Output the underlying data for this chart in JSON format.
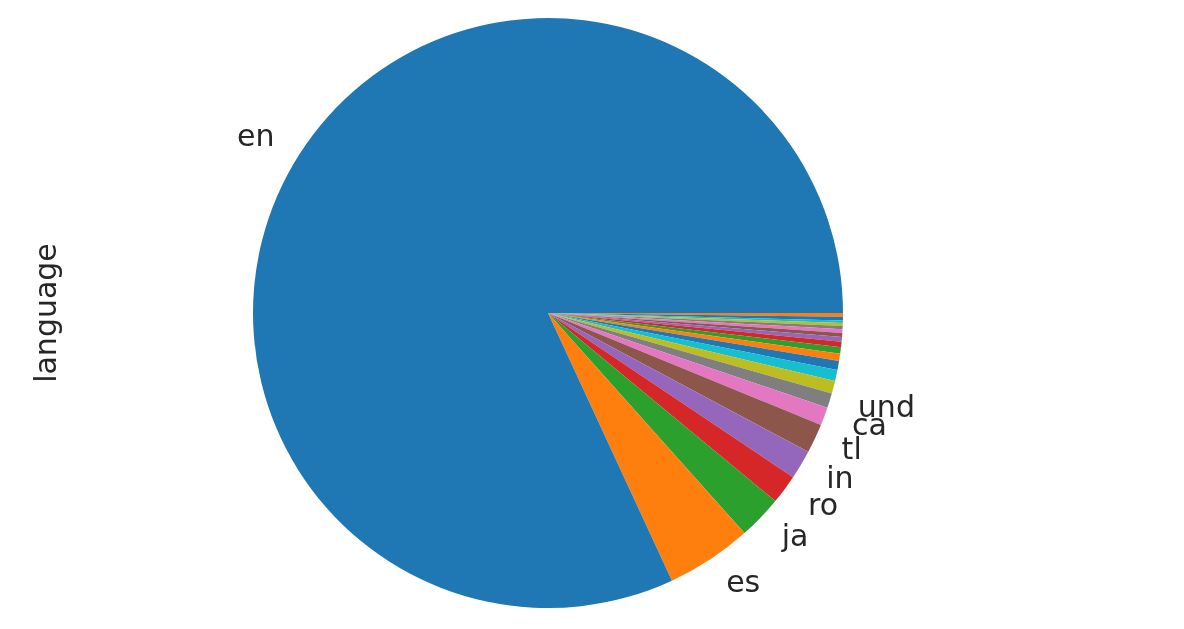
{
  "chart_data": {
    "type": "pie",
    "ylabel": "language",
    "categories": [
      "en",
      "es",
      "ja",
      "ro",
      "in",
      "tl",
      "ca",
      "und",
      null,
      null,
      null,
      null,
      null,
      null,
      null,
      null,
      null,
      null,
      null,
      null,
      null,
      null
    ],
    "values": [
      81.9,
      4.7,
      2.4,
      1.6,
      1.6,
      1.6,
      1.0,
      0.8,
      0.7,
      0.6,
      0.5,
      0.4,
      0.35,
      0.3,
      0.25,
      0.22,
      0.2,
      0.18,
      0.16,
      0.14,
      0.2,
      0.2
    ],
    "colors": [
      "#1f77b4",
      "#ff7f0e",
      "#2ca02c",
      "#d62728",
      "#9467bd",
      "#8c564b",
      "#e377c2",
      "#7f7f7f",
      "#bcbd22",
      "#17becf",
      "#1f77b4",
      "#ff7f0e",
      "#2ca02c",
      "#d62728",
      "#9467bd",
      "#8c564b",
      "#e377c2",
      "#7f7f7f",
      "#bcbd22",
      "#17becf",
      "#1f77b4",
      "#ff7f0e"
    ]
  }
}
